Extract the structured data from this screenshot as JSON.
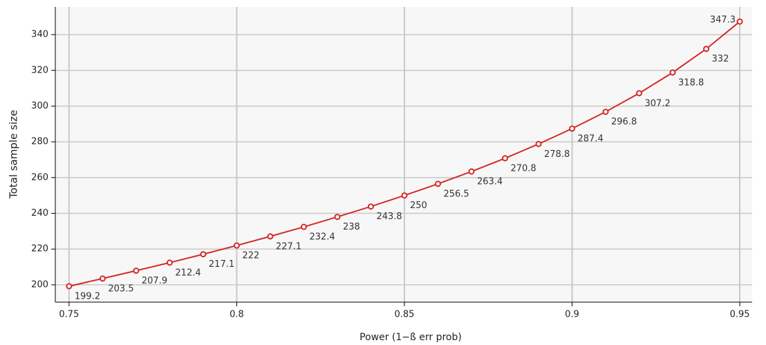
{
  "chart_data": {
    "type": "line",
    "xlabel": "Power (1−ß err prob)",
    "ylabel": "Total sample size",
    "x": [
      0.75,
      0.76,
      0.77,
      0.78,
      0.79,
      0.8,
      0.81,
      0.82,
      0.83,
      0.84,
      0.85,
      0.86,
      0.87,
      0.88,
      0.89,
      0.9,
      0.91,
      0.92,
      0.93,
      0.94,
      0.95
    ],
    "series": [
      {
        "color": "#d42a2a",
        "values": [
          199.2,
          203.5,
          207.9,
          212.4,
          217.1,
          222,
          227.1,
          232.4,
          238,
          243.8,
          250,
          256.5,
          263.4,
          270.8,
          278.8,
          287.4,
          296.8,
          307.2,
          318.8,
          332,
          347.3
        ]
      }
    ],
    "xlim": [
      0.7459,
      0.9537
    ],
    "ylim": [
      190.3,
      355.5
    ],
    "xticks": [
      0.75,
      0.8,
      0.85,
      0.9,
      0.95
    ],
    "yticks": [
      200,
      220,
      240,
      260,
      280,
      300,
      320,
      340
    ],
    "grid": true
  }
}
